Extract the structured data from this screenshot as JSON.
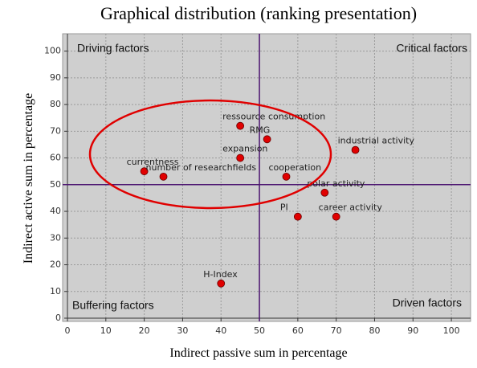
{
  "chart_data": {
    "type": "scatter",
    "title": "Graphical distribution (ranking presentation)",
    "x_label": "Indirect passive sum in percentage",
    "y_label": "Indirect active sum in percentage",
    "labels": [
      "ressource consumption",
      "RMG",
      "industrial activity",
      "expansion",
      "currentness",
      "number of researchfields",
      "cooperation",
      "polar activity",
      "PI",
      "career activity",
      "H-Index"
    ],
    "x": [
      45,
      52,
      75,
      45,
      20,
      25,
      57,
      67,
      60,
      70,
      40
    ],
    "values": [
      72,
      67,
      63,
      60,
      55,
      53,
      53,
      47,
      38,
      38,
      13
    ],
    "color": "#e00000",
    "xlim": [
      0,
      105
    ],
    "ylim": [
      0,
      105
    ],
    "xticks": [
      0,
      10,
      20,
      30,
      40,
      50,
      60,
      70,
      80,
      90,
      100
    ],
    "yticks": [
      0,
      10,
      20,
      30,
      40,
      50,
      60,
      70,
      80,
      90,
      100
    ],
    "grid": true,
    "x_divider": 50,
    "y_divider": 50,
    "quadrant_labels": {
      "top_left": "Driving factors",
      "top_right": "Critical factors",
      "bottom_left": "Buffering factors",
      "bottom_right": "Driven factors"
    }
  }
}
